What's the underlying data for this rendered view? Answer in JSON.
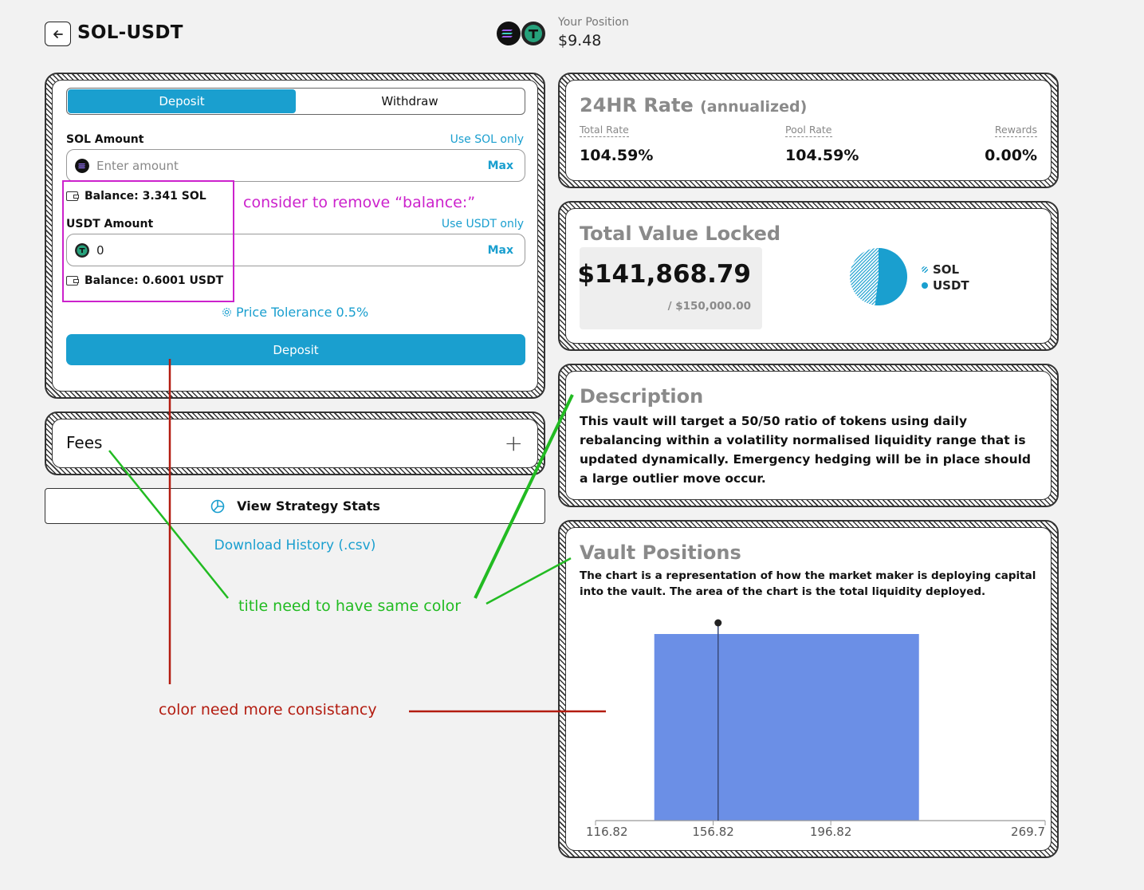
{
  "header": {
    "title": "SOL-USDT",
    "position_label": "Your Position",
    "position_value": "$9.48"
  },
  "deposit_card": {
    "tabs": [
      {
        "label": "Deposit",
        "active": true
      },
      {
        "label": "Withdraw",
        "active": false
      }
    ],
    "sol": {
      "label": "SOL Amount",
      "use_only": "Use SOL only",
      "placeholder": "Enter amount",
      "max": "Max",
      "balance": "Balance: 3.341 SOL"
    },
    "usdt": {
      "label": "USDT Amount",
      "use_only": "Use USDT only",
      "value": "0",
      "max": "Max",
      "balance": "Balance: 0.6001 USDT"
    },
    "tolerance": "Price Tolerance 0.5%",
    "submit": "Deposit"
  },
  "fees": {
    "title": "Fees",
    "expand_icon": "plus-icon"
  },
  "strategy_button": "View Strategy Stats",
  "download_link": "Download History (.csv)",
  "rate_card": {
    "title": "24HR Rate",
    "title_suffix": "(annualized)",
    "items": [
      {
        "label": "Total Rate",
        "value": "104.59%"
      },
      {
        "label": "Pool Rate",
        "value": "104.59%"
      },
      {
        "label": "Rewards",
        "value": "0.00%"
      }
    ]
  },
  "tvl_card": {
    "title": "Total Value Locked",
    "value": "$141,868.79",
    "cap": "/ $150,000.00",
    "legend": [
      "SOL",
      "USDT"
    ],
    "pie": {
      "sol_share": 0.48,
      "usdt_share": 0.52
    }
  },
  "description_card": {
    "title": "Description",
    "text": "This vault will target a 50/50 ratio of tokens using daily rebalancing within a volatility normalised liquidity range that is updated dynamically. Emergency hedging will be in place should a large outlier move occur."
  },
  "vault_positions": {
    "title": "Vault Positions",
    "text": "The chart is a representation of how the market maker is deploying capital into the vault. The area of the chart is the total liquidity deployed."
  },
  "chart_data": {
    "type": "area",
    "x_ticks": [
      "116.82",
      "156.82",
      "196.82",
      "269.7"
    ],
    "xlim": [
      116.82,
      269.7
    ],
    "ranges": [
      {
        "x0": 136.8,
        "x0_note": "",
        "x1": 226.8,
        "value": 1
      }
    ],
    "current_price": 158.5,
    "colors": {
      "fill": "#6b8fe6",
      "marker": "#222222"
    }
  },
  "annotations": {
    "balance_note": "consider to remove “balance:”",
    "title_note": "title need to have same color",
    "color_note": "color need more consistancy",
    "colors": {
      "magenta": "#cc22cc",
      "green": "#22bb22",
      "red": "#b31c10"
    }
  },
  "colors": {
    "accent": "#1a9fcf",
    "title_gray": "#8a8a8a"
  }
}
